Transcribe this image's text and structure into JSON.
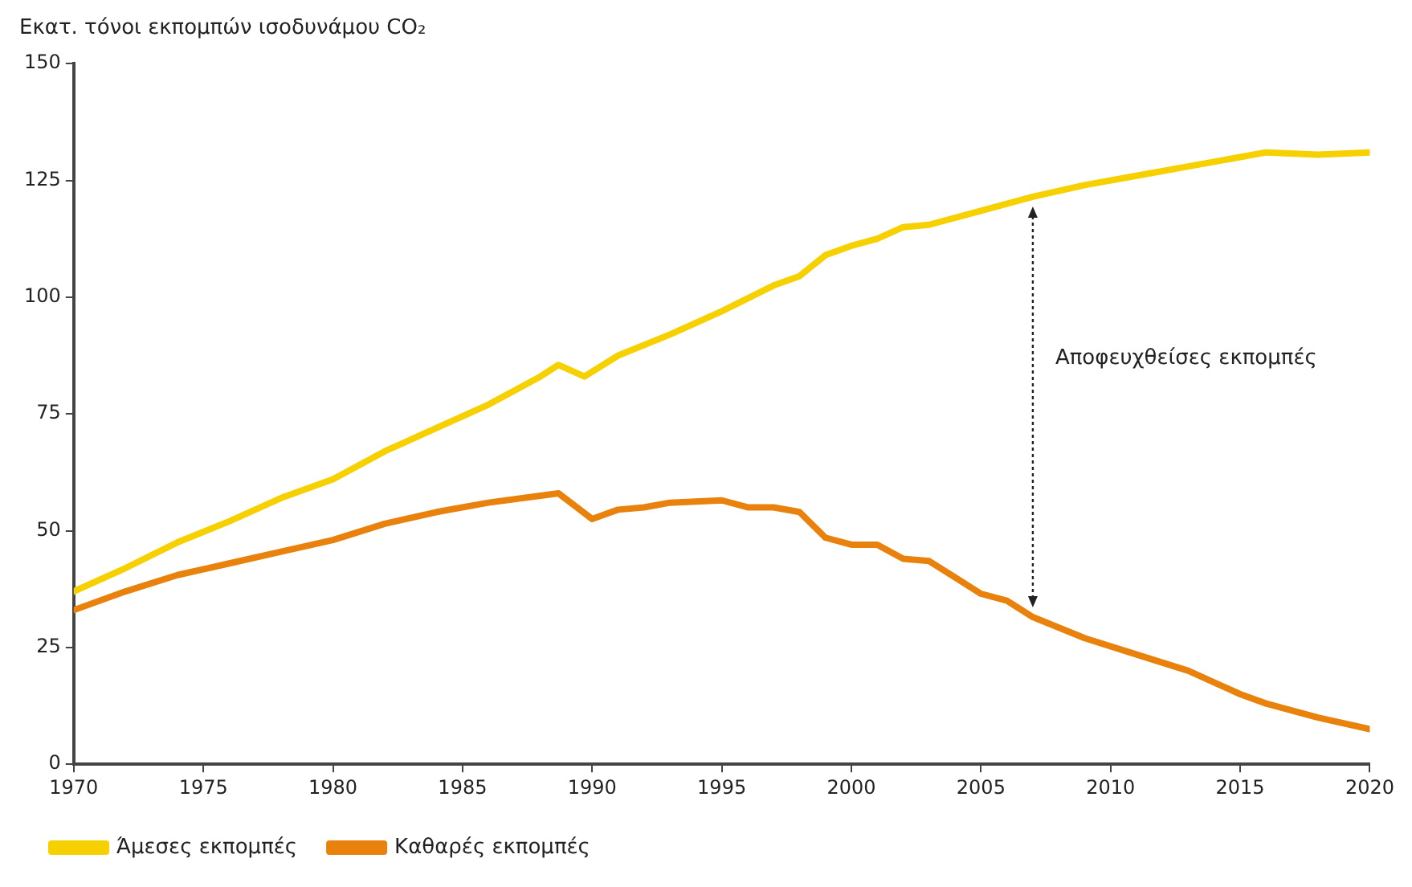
{
  "chart_data": {
    "type": "line",
    "ylabel": "Εκατ. τόνοι εκπομπών ισοδυνάμου CO₂",
    "xlim": [
      1970,
      2020
    ],
    "xticks": [
      1970,
      1975,
      1980,
      1985,
      1990,
      1995,
      2000,
      2005,
      2010,
      2015,
      2020
    ],
    "ylim": [
      0,
      150
    ],
    "yticks": [
      0,
      25,
      50,
      75,
      100,
      125,
      150
    ],
    "grid": false,
    "legend": "bottom",
    "marker": "none",
    "line_style": "solid",
    "series": [
      {
        "name": "Άμεσες εκπομπές",
        "color": "#f7d000",
        "x": [
          1970,
          1972,
          1974,
          1976,
          1978,
          1980,
          1982,
          1984,
          1986,
          1988,
          1988.7,
          1989.7,
          1991,
          1993,
          1995,
          1997,
          1998,
          1999,
          2000,
          2001,
          2002,
          2003,
          2005,
          2007,
          2009,
          2011,
          2013,
          2015,
          2016,
          2018,
          2020
        ],
        "values": [
          37,
          42,
          47.5,
          52,
          57,
          61,
          67,
          72,
          77,
          83,
          85.5,
          83,
          87.5,
          92,
          97,
          102.5,
          104.5,
          109,
          111,
          112.5,
          115,
          115.5,
          118.5,
          121.5,
          124,
          126,
          128,
          130,
          131,
          130.5,
          131
        ]
      },
      {
        "name": "Καθαρές εκπομπές",
        "color": "#e8820c",
        "x": [
          1970,
          1972,
          1974,
          1976,
          1978,
          1980,
          1982,
          1984,
          1986,
          1988,
          1988.7,
          1990,
          1991,
          1992,
          1993,
          1995,
          1996,
          1997,
          1998,
          1999,
          2000,
          2001,
          2002,
          2003,
          2004,
          2005,
          2006,
          2007,
          2009,
          2011,
          2013,
          2015,
          2016,
          2018,
          2020
        ],
        "values": [
          33,
          37,
          40.5,
          43,
          45.5,
          48,
          51.5,
          54,
          56,
          57.5,
          58,
          52.5,
          54.5,
          55,
          56,
          56.5,
          55,
          55,
          54,
          48.5,
          47,
          47,
          44,
          43.5,
          40,
          36.5,
          35,
          31.5,
          27,
          23.5,
          20,
          15,
          13,
          10,
          7.5
        ]
      }
    ],
    "annotations": [
      "Αποφευχθείσες εκπομπές"
    ]
  }
}
